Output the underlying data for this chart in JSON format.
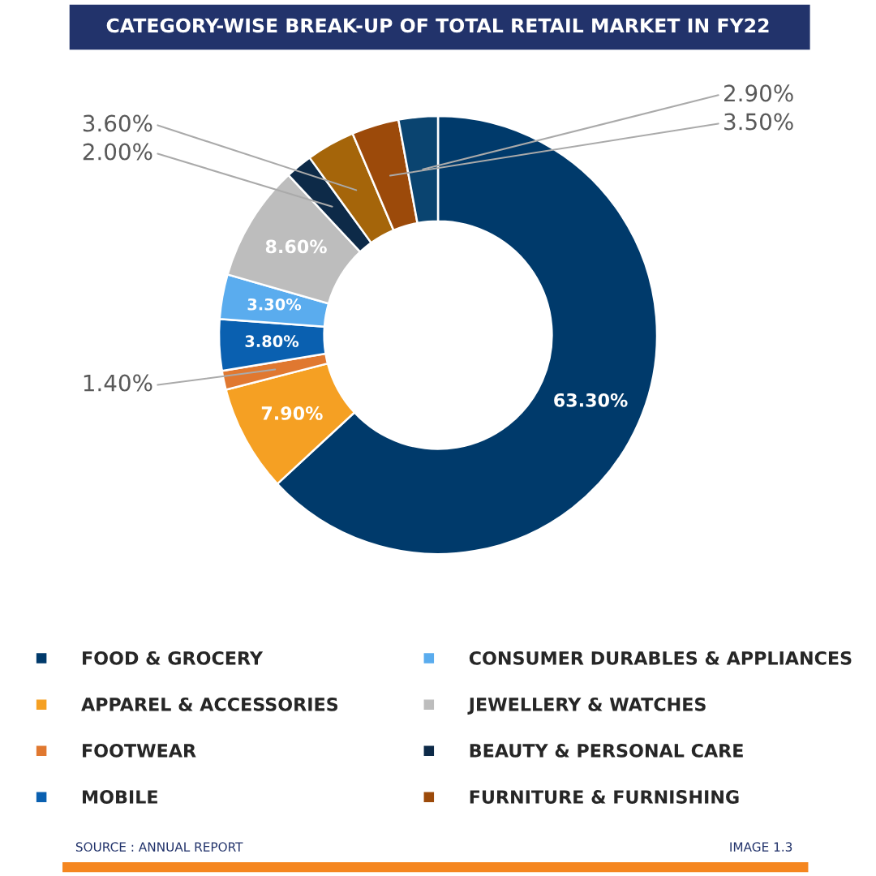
{
  "chart_data": {
    "type": "donut",
    "title": "CATEGORY-WISE BREAK-UP OF TOTAL RETAIL MARKET IN FY22",
    "categories": [
      "FOOD & GROCERY",
      "APPAREL & ACCESSORIES",
      "FOOTWEAR",
      "MOBILE",
      "CONSUMER DURABLES & APPLIANCES",
      "JEWELLERY & WATCHES",
      "BEAUTY & PERSONAL CARE",
      null,
      "FURNITURE & FURNISHING",
      null
    ],
    "values": [
      63.3,
      7.9,
      1.4,
      3.8,
      3.3,
      8.6,
      2.0,
      3.6,
      3.5,
      2.9
    ],
    "colors": [
      "#003a6b",
      "#f5a023",
      "#e07830",
      "#0a60b0",
      "#5aacee",
      "#bdbdbd",
      "#0d2a48",
      "#a5650a",
      "#9c4a0a",
      "#0a4470"
    ],
    "value_labels": [
      "63.30%",
      "7.90%",
      "1.40%",
      "3.80%",
      "3.30%",
      "8.60%",
      "2.00%",
      "3.60%",
      "3.50%",
      "2.90%"
    ],
    "legend": "bottom",
    "annotations": [
      "SOURCE : ANNUAL REPORT",
      "IMAGE 1.3"
    ]
  }
}
